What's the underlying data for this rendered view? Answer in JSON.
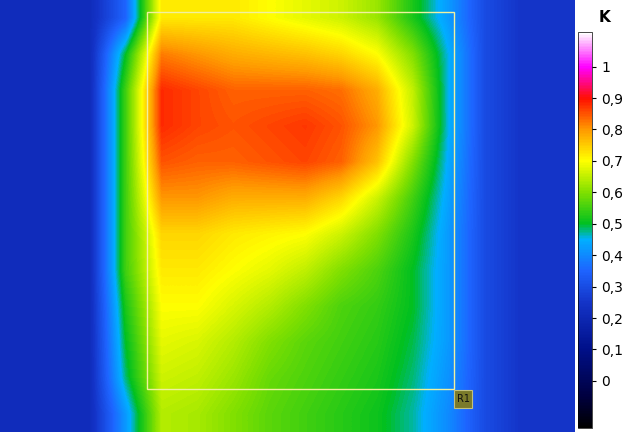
{
  "chart_data": {
    "type": "heatmap",
    "tick_labels": false,
    "cells": [
      [
        0.22,
        0.22,
        0.22,
        0.35,
        0.72,
        0.72,
        0.72,
        0.7,
        0.68,
        0.66,
        0.62,
        0.52,
        0.42,
        0.3,
        0.25,
        0.25
      ],
      [
        0.22,
        0.22,
        0.22,
        0.5,
        0.82,
        0.8,
        0.78,
        0.77,
        0.76,
        0.74,
        0.7,
        0.6,
        0.45,
        0.3,
        0.25,
        0.25
      ],
      [
        0.22,
        0.22,
        0.22,
        0.55,
        0.88,
        0.86,
        0.84,
        0.84,
        0.84,
        0.83,
        0.78,
        0.65,
        0.45,
        0.3,
        0.25,
        0.25
      ],
      [
        0.22,
        0.22,
        0.22,
        0.55,
        0.88,
        0.86,
        0.85,
        0.86,
        0.87,
        0.85,
        0.8,
        0.66,
        0.45,
        0.3,
        0.25,
        0.25
      ],
      [
        0.22,
        0.22,
        0.22,
        0.55,
        0.85,
        0.84,
        0.84,
        0.85,
        0.86,
        0.84,
        0.76,
        0.6,
        0.44,
        0.3,
        0.25,
        0.25
      ],
      [
        0.22,
        0.22,
        0.22,
        0.55,
        0.8,
        0.8,
        0.78,
        0.78,
        0.78,
        0.74,
        0.66,
        0.55,
        0.43,
        0.3,
        0.25,
        0.25
      ],
      [
        0.22,
        0.22,
        0.22,
        0.55,
        0.74,
        0.74,
        0.72,
        0.71,
        0.7,
        0.66,
        0.6,
        0.52,
        0.42,
        0.3,
        0.25,
        0.25
      ],
      [
        0.22,
        0.22,
        0.22,
        0.55,
        0.72,
        0.72,
        0.7,
        0.68,
        0.65,
        0.6,
        0.56,
        0.5,
        0.42,
        0.3,
        0.25,
        0.25
      ],
      [
        0.22,
        0.22,
        0.22,
        0.52,
        0.7,
        0.7,
        0.67,
        0.64,
        0.6,
        0.56,
        0.54,
        0.5,
        0.42,
        0.3,
        0.25,
        0.25
      ],
      [
        0.22,
        0.22,
        0.22,
        0.5,
        0.68,
        0.67,
        0.64,
        0.6,
        0.57,
        0.55,
        0.53,
        0.49,
        0.42,
        0.3,
        0.25,
        0.25
      ],
      [
        0.22,
        0.22,
        0.22,
        0.48,
        0.66,
        0.65,
        0.62,
        0.58,
        0.56,
        0.54,
        0.52,
        0.48,
        0.41,
        0.3,
        0.25,
        0.25
      ],
      [
        0.22,
        0.22,
        0.22,
        0.42,
        0.64,
        0.63,
        0.6,
        0.57,
        0.55,
        0.53,
        0.51,
        0.47,
        0.4,
        0.3,
        0.25,
        0.25
      ]
    ],
    "colorbar_title": "K",
    "colorbar_range": [
      -0.15,
      1.11
    ],
    "colorbar_ticks": [
      0,
      {
        "value": 0.1,
        "label": "0,1"
      },
      {
        "value": 0.2,
        "label": "0,2"
      },
      {
        "value": 0.3,
        "label": "0,3"
      },
      {
        "value": 0.4,
        "label": "0,4"
      },
      {
        "value": 0.5,
        "label": "0,5"
      },
      {
        "value": 0.6,
        "label": "0,6"
      },
      {
        "value": 0.7,
        "label": "0,7"
      },
      {
        "value": 0.8,
        "label": "0,8"
      },
      {
        "value": 0.9,
        "label": "0,9"
      },
      1
    ],
    "roi_label": "R1"
  }
}
